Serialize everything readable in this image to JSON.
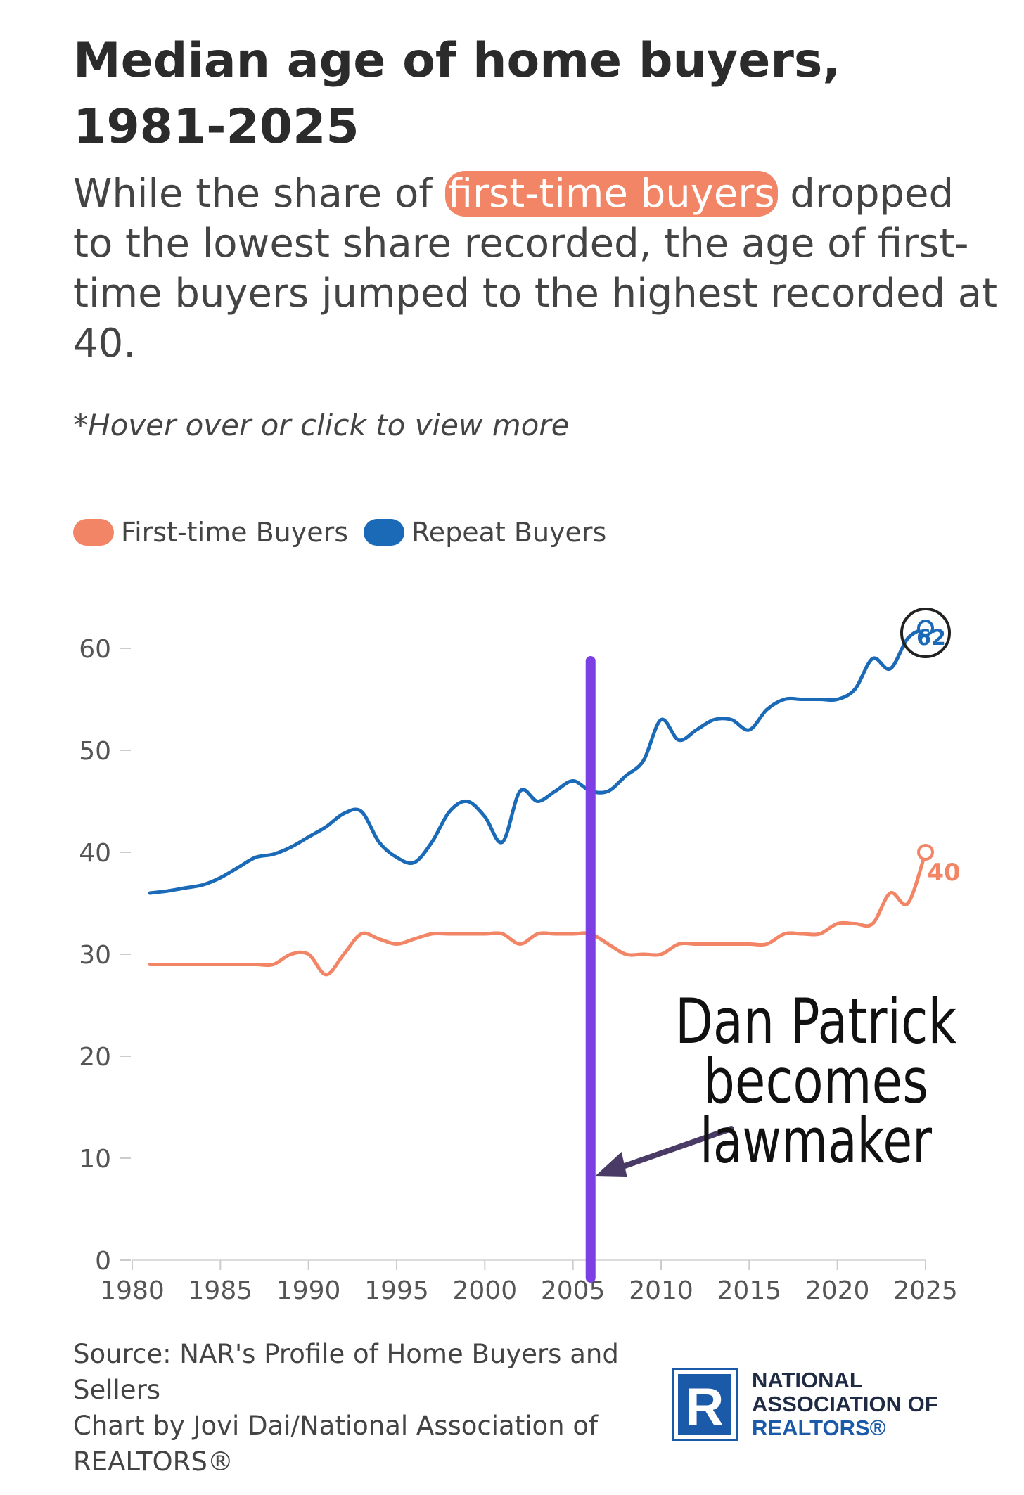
{
  "title": "Median age of home buyers, 1981-2025",
  "subtitle": {
    "before": "While the share of ",
    "highlight": "first-time buyers",
    "after": " dropped to the lowest share recorded, the age of first-time buyers jumped to the highest recorded at 40."
  },
  "hint": "*Hover over or click to view more",
  "colors": {
    "first_time": "#f28566",
    "repeat": "#1a6ab8",
    "annotation_line": "#7b3fe4",
    "annotation_glow": "#2f7bff"
  },
  "chart_data": {
    "type": "line",
    "x": [
      1981,
      1982,
      1983,
      1984,
      1985,
      1986,
      1987,
      1988,
      1989,
      1990,
      1991,
      1992,
      1993,
      1994,
      1995,
      1996,
      1997,
      1998,
      1999,
      2000,
      2001,
      2002,
      2003,
      2004,
      2005,
      2006,
      2007,
      2008,
      2009,
      2010,
      2011,
      2012,
      2013,
      2014,
      2015,
      2016,
      2017,
      2018,
      2019,
      2020,
      2021,
      2022,
      2023,
      2024,
      2025
    ],
    "series": [
      {
        "name": "First-time Buyers",
        "values": [
          29,
          29,
          29,
          29,
          29,
          29,
          29,
          29,
          30,
          30,
          28,
          30,
          32,
          31.5,
          31,
          31.5,
          32,
          32,
          32,
          32,
          32,
          31,
          32,
          32,
          32,
          32,
          31,
          30,
          30,
          30,
          31,
          31,
          31,
          31,
          31,
          31,
          32,
          32,
          32,
          33,
          33,
          33,
          36,
          35,
          40
        ],
        "end_label": "40"
      },
      {
        "name": "Repeat Buyers",
        "values": [
          36,
          36.2,
          36.5,
          36.8,
          37.5,
          38.5,
          39.5,
          39.8,
          40.5,
          41.5,
          42.5,
          43.8,
          44,
          41,
          39.5,
          39,
          41,
          44,
          45,
          43.5,
          41,
          46,
          45,
          46,
          47,
          46,
          46,
          47.5,
          49,
          53,
          51,
          52,
          53,
          53,
          52,
          54,
          55,
          55,
          55,
          55,
          56,
          59,
          58,
          61,
          62
        ],
        "end_label": "62"
      }
    ],
    "ylim": [
      0,
      60
    ],
    "yticks": [
      0,
      10,
      20,
      30,
      40,
      50,
      60
    ],
    "xticks": [
      1980,
      1985,
      1990,
      1995,
      2000,
      2005,
      2010,
      2015,
      2020,
      2025
    ],
    "xlim": [
      1980,
      2025
    ],
    "legend_position": "top-left",
    "grid": false,
    "annotation": {
      "text_lines": [
        "Dan Patrick",
        "becomes",
        "lawmaker"
      ],
      "x": 2006
    }
  },
  "footer": {
    "source": "Source: NAR's Profile of Home Buyers and Sellers",
    "credit": "Chart by Jovi Dai/National Association of REALTORS®"
  },
  "logo": {
    "letter": "R",
    "line1": "NATIONAL",
    "line2": "ASSOCIATION OF",
    "line3": "REALTORS®"
  }
}
